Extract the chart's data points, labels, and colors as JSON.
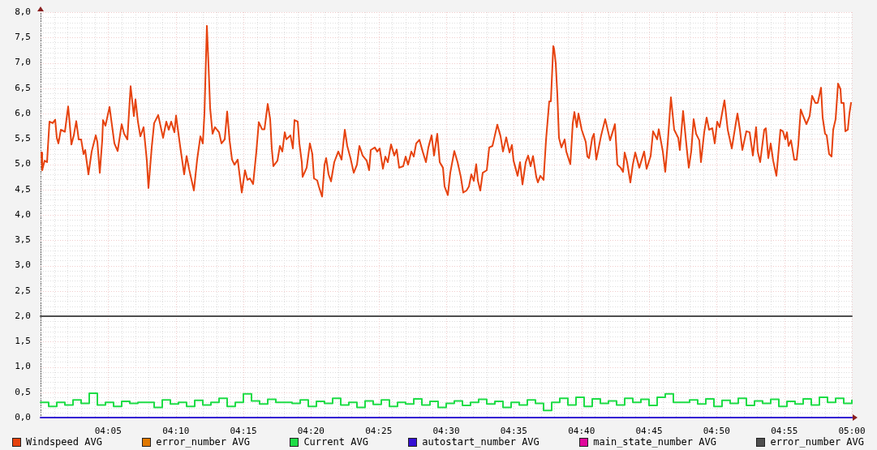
{
  "chart_data": {
    "type": "line",
    "legend": "bottom",
    "grid": true,
    "xlim": [
      4,
      5
    ],
    "ylim": [
      0,
      8
    ],
    "xticks": [
      {
        "value": 4,
        "label": null
      },
      {
        "value": 4.0167,
        "label": null
      },
      {
        "value": 4.0333,
        "label": null
      },
      {
        "value": 4.05,
        "label": null
      },
      {
        "value": 4.0667,
        "label": null
      },
      {
        "value": 4.0833,
        "label": "04:05"
      },
      {
        "value": 4.1,
        "label": null
      },
      {
        "value": 4.1167,
        "label": null
      },
      {
        "value": 4.1333,
        "label": null
      },
      {
        "value": 4.15,
        "label": null
      },
      {
        "value": 4.1667,
        "label": "04:10"
      },
      {
        "value": 4.1833,
        "label": null
      },
      {
        "value": 4.2,
        "label": null
      },
      {
        "value": 4.2167,
        "label": null
      },
      {
        "value": 4.2333,
        "label": null
      },
      {
        "value": 4.25,
        "label": "04:15"
      },
      {
        "value": 4.2667,
        "label": null
      },
      {
        "value": 4.2833,
        "label": null
      },
      {
        "value": 4.3,
        "label": null
      },
      {
        "value": 4.3167,
        "label": null
      },
      {
        "value": 4.3333,
        "label": "04:20"
      },
      {
        "value": 4.35,
        "label": null
      },
      {
        "value": 4.3667,
        "label": null
      },
      {
        "value": 4.3833,
        "label": null
      },
      {
        "value": 4.4,
        "label": null
      },
      {
        "value": 4.4167,
        "label": "04:25"
      },
      {
        "value": 4.4333,
        "label": null
      },
      {
        "value": 4.45,
        "label": null
      },
      {
        "value": 4.4667,
        "label": null
      },
      {
        "value": 4.4833,
        "label": null
      },
      {
        "value": 4.5,
        "label": "04:30"
      },
      {
        "value": 4.5167,
        "label": null
      },
      {
        "value": 4.5333,
        "label": null
      },
      {
        "value": 4.55,
        "label": null
      },
      {
        "value": 4.5667,
        "label": null
      },
      {
        "value": 4.5833,
        "label": "04:35"
      },
      {
        "value": 4.6,
        "label": null
      },
      {
        "value": 4.6167,
        "label": null
      },
      {
        "value": 4.6333,
        "label": null
      },
      {
        "value": 4.65,
        "label": null
      },
      {
        "value": 4.6667,
        "label": "04:40"
      },
      {
        "value": 4.6833,
        "label": null
      },
      {
        "value": 4.7,
        "label": null
      },
      {
        "value": 4.7167,
        "label": null
      },
      {
        "value": 4.7333,
        "label": null
      },
      {
        "value": 4.75,
        "label": "04:45"
      },
      {
        "value": 4.7667,
        "label": null
      },
      {
        "value": 4.7833,
        "label": null
      },
      {
        "value": 4.8,
        "label": null
      },
      {
        "value": 4.8167,
        "label": null
      },
      {
        "value": 4.8333,
        "label": "04:50"
      },
      {
        "value": 4.85,
        "label": null
      },
      {
        "value": 4.8667,
        "label": null
      },
      {
        "value": 4.8833,
        "label": null
      },
      {
        "value": 4.9,
        "label": null
      },
      {
        "value": 4.9167,
        "label": "04:55"
      },
      {
        "value": 4.9333,
        "label": null
      },
      {
        "value": 4.95,
        "label": null
      },
      {
        "value": 4.9667,
        "label": null
      },
      {
        "value": 4.9833,
        "label": null
      },
      {
        "value": 5,
        "label": "05:00"
      }
    ],
    "yticks": [
      {
        "value": 0,
        "label": "0,0"
      },
      {
        "value": 0.1,
        "label": null
      },
      {
        "value": 0.2,
        "label": null
      },
      {
        "value": 0.3,
        "label": null
      },
      {
        "value": 0.4,
        "label": null
      },
      {
        "value": 0.5,
        "label": "0,5"
      },
      {
        "value": 0.6,
        "label": null
      },
      {
        "value": 0.7,
        "label": null
      },
      {
        "value": 0.8,
        "label": null
      },
      {
        "value": 0.9,
        "label": null
      },
      {
        "value": 1,
        "label": "1,0"
      },
      {
        "value": 1.1,
        "label": null
      },
      {
        "value": 1.2,
        "label": null
      },
      {
        "value": 1.3,
        "label": null
      },
      {
        "value": 1.4,
        "label": null
      },
      {
        "value": 1.5,
        "label": "1,5"
      },
      {
        "value": 1.6,
        "label": null
      },
      {
        "value": 1.7,
        "label": null
      },
      {
        "value": 1.8,
        "label": null
      },
      {
        "value": 1.9,
        "label": null
      },
      {
        "value": 2,
        "label": "2,0"
      },
      {
        "value": 2.1,
        "label": null
      },
      {
        "value": 2.2,
        "label": null
      },
      {
        "value": 2.3,
        "label": null
      },
      {
        "value": 2.4,
        "label": null
      },
      {
        "value": 2.5,
        "label": "2,5"
      },
      {
        "value": 2.6,
        "label": null
      },
      {
        "value": 2.7,
        "label": null
      },
      {
        "value": 2.8,
        "label": null
      },
      {
        "value": 2.9,
        "label": null
      },
      {
        "value": 3,
        "label": "3,0"
      },
      {
        "value": 3.1,
        "label": null
      },
      {
        "value": 3.2,
        "label": null
      },
      {
        "value": 3.3,
        "label": null
      },
      {
        "value": 3.4,
        "label": null
      },
      {
        "value": 3.5,
        "label": "3,5"
      },
      {
        "value": 3.6,
        "label": null
      },
      {
        "value": 3.7,
        "label": null
      },
      {
        "value": 3.8,
        "label": null
      },
      {
        "value": 3.9,
        "label": null
      },
      {
        "value": 4,
        "label": "4,0"
      },
      {
        "value": 4.1,
        "label": null
      },
      {
        "value": 4.2,
        "label": null
      },
      {
        "value": 4.3,
        "label": null
      },
      {
        "value": 4.4,
        "label": null
      },
      {
        "value": 4.5,
        "label": "4,5"
      },
      {
        "value": 4.6,
        "label": null
      },
      {
        "value": 4.7,
        "label": null
      },
      {
        "value": 4.8,
        "label": null
      },
      {
        "value": 4.9,
        "label": null
      },
      {
        "value": 5,
        "label": "5,0"
      },
      {
        "value": 5.1,
        "label": null
      },
      {
        "value": 5.2,
        "label": null
      },
      {
        "value": 5.3,
        "label": null
      },
      {
        "value": 5.4,
        "label": null
      },
      {
        "value": 5.5,
        "label": "5,5"
      },
      {
        "value": 5.6,
        "label": null
      },
      {
        "value": 5.7,
        "label": null
      },
      {
        "value": 5.8,
        "label": null
      },
      {
        "value": 5.9,
        "label": null
      },
      {
        "value": 6,
        "label": "6,0"
      },
      {
        "value": 6.1,
        "label": null
      },
      {
        "value": 6.2,
        "label": null
      },
      {
        "value": 6.3,
        "label": null
      },
      {
        "value": 6.4,
        "label": null
      },
      {
        "value": 6.5,
        "label": "6,5"
      },
      {
        "value": 6.6,
        "label": null
      },
      {
        "value": 6.7,
        "label": null
      },
      {
        "value": 6.8,
        "label": null
      },
      {
        "value": 6.9,
        "label": null
      },
      {
        "value": 7,
        "label": "7,0"
      },
      {
        "value": 7.1,
        "label": null
      },
      {
        "value": 7.2,
        "label": null
      },
      {
        "value": 7.3,
        "label": null
      },
      {
        "value": 7.4,
        "label": null
      },
      {
        "value": 7.5,
        "label": "7,5"
      },
      {
        "value": 7.6,
        "label": null
      },
      {
        "value": 7.7,
        "label": null
      },
      {
        "value": 7.8,
        "label": null
      },
      {
        "value": 7.9,
        "label": null
      },
      {
        "value": 8,
        "label": "8,0"
      }
    ],
    "series": [
      {
        "name": "Windspeed AVG",
        "color": "#e6420e",
        "x": [
          4.001,
          4.002,
          4.005,
          4.008,
          4.009,
          4.011,
          4.015,
          4.018,
          4.02,
          4.022,
          4.025,
          4.03,
          4.034,
          4.036,
          4.038,
          4.041,
          4.044,
          4.047,
          4.05,
          4.053,
          4.055,
          4.059,
          4.063,
          4.068,
          4.07,
          4.073,
          4.076,
          4.077,
          4.08,
          4.085,
          4.087,
          4.091,
          4.095,
          4.1,
          4.103,
          4.107,
          4.111,
          4.115,
          4.117,
          4.12,
          4.123,
          4.127,
          4.131,
          4.133,
          4.137,
          4.14,
          4.145,
          4.151,
          4.155,
          4.158,
          4.161,
          4.165,
          4.167,
          4.172,
          4.177,
          4.18,
          4.183,
          4.189,
          4.193,
          4.197,
          4.2,
          4.202,
          4.205,
          4.207,
          4.209,
          4.212,
          4.215,
          4.22,
          4.223,
          4.227,
          4.23,
          4.233,
          4.236,
          4.239,
          4.243,
          4.248,
          4.252,
          4.255,
          4.258,
          4.262,
          4.266,
          4.269,
          4.273,
          4.276,
          4.28,
          4.283,
          4.285,
          4.287,
          4.292,
          4.295,
          4.298,
          4.301,
          4.303,
          4.308,
          4.311,
          4.313,
          4.317,
          4.319,
          4.322,
          4.323,
          4.328,
          4.332,
          4.335,
          4.337,
          4.341,
          4.343,
          4.347,
          4.35,
          4.352,
          4.355,
          4.358,
          4.362,
          4.367,
          4.371,
          4.375,
          4.378,
          4.382,
          4.386,
          4.39,
          4.393,
          4.397,
          4.402,
          4.405,
          4.407,
          4.412,
          4.415,
          4.418,
          4.422,
          4.425,
          4.428,
          4.432,
          4.436,
          4.439,
          4.442,
          4.447,
          4.45,
          4.453,
          4.457,
          4.46,
          4.463,
          4.467,
          4.471,
          4.475,
          4.478,
          4.482,
          4.485,
          4.489,
          4.492,
          4.496,
          4.498,
          4.502,
          4.505,
          4.51,
          4.514,
          4.518,
          4.521,
          4.525,
          4.528,
          4.531,
          4.534,
          4.537,
          4.539,
          4.542,
          4.545,
          4.55,
          4.553,
          4.557,
          4.56,
          4.563,
          4.567,
          4.57,
          4.574,
          4.578,
          4.581,
          4.583,
          4.588,
          4.591,
          4.594,
          4.598,
          4.601,
          4.604,
          4.607,
          4.611,
          4.613,
          4.616,
          4.62,
          4.623,
          4.627,
          4.629,
          4.632,
          4.633,
          4.635,
          4.637,
          4.639,
          4.642,
          4.646,
          4.648,
          4.653,
          4.656,
          4.658,
          4.661,
          4.663,
          4.667,
          4.672,
          4.674,
          4.676,
          4.68,
          4.682,
          4.685,
          4.691,
          4.696,
          4.702,
          4.708,
          4.711,
          4.715,
          4.718,
          4.72,
          4.723,
          4.727,
          4.73,
          4.733,
          4.738,
          4.744,
          4.747,
          4.752,
          4.755,
          4.76,
          4.762,
          4.767,
          4.77,
          4.773,
          4.777,
          4.781,
          4.786,
          4.788,
          4.792,
          4.796,
          4.799,
          4.802,
          4.805,
          4.808,
          4.812,
          4.814,
          4.818,
          4.821,
          4.824,
          4.828,
          4.831,
          4.834,
          4.837,
          4.84,
          4.843,
          4.847,
          4.852,
          4.857,
          4.859,
          4.862,
          4.865,
          4.87,
          4.874,
          4.878,
          4.882,
          4.884,
          4.887,
          4.892,
          4.894,
          4.897,
          4.9,
          4.903,
          4.907,
          4.912,
          4.915,
          4.918,
          4.92,
          4.922,
          4.925,
          4.929,
          4.932,
          4.934,
          4.937,
          4.94,
          4.944,
          4.948,
          4.951,
          4.955,
          4.958,
          4.962,
          4.964,
          4.967,
          4.969,
          4.972,
          4.975,
          4.977,
          4.98,
          4.983,
          4.986,
          4.987,
          4.99,
          4.992,
          4.995,
          4.997,
          4.999
        ],
        "values": [
          5.23,
          4.88,
          5.07,
          5.04,
          5.32,
          5.84,
          5.81,
          5.88,
          5.52,
          5.41,
          5.68,
          5.64,
          6.14,
          5.79,
          5.39,
          5.57,
          5.85,
          5.49,
          5.49,
          5.2,
          5.28,
          4.8,
          5.25,
          5.57,
          5.44,
          4.83,
          5.47,
          5.87,
          5.76,
          6.13,
          5.89,
          5.41,
          5.26,
          5.79,
          5.6,
          5.49,
          6.54,
          5.95,
          6.28,
          5.84,
          5.55,
          5.73,
          5.07,
          4.53,
          5.33,
          5.81,
          5.97,
          5.52,
          5.84,
          5.68,
          5.84,
          5.63,
          5.96,
          5.36,
          4.8,
          5.16,
          4.91,
          4.48,
          5.09,
          5.55,
          5.41,
          6.0,
          7.73,
          6.96,
          6.11,
          5.6,
          5.73,
          5.63,
          5.41,
          5.49,
          6.04,
          5.47,
          5.09,
          4.99,
          5.09,
          4.44,
          4.88,
          4.69,
          4.72,
          4.61,
          5.25,
          5.83,
          5.69,
          5.69,
          6.19,
          5.89,
          5.31,
          4.96,
          5.07,
          5.36,
          5.25,
          5.63,
          5.49,
          5.57,
          5.31,
          5.87,
          5.84,
          5.41,
          5.04,
          4.75,
          4.93,
          5.41,
          5.2,
          4.72,
          4.68,
          4.56,
          4.36,
          4.99,
          5.12,
          4.8,
          4.66,
          5.04,
          5.25,
          5.09,
          5.68,
          5.36,
          5.12,
          4.83,
          4.99,
          5.36,
          5.17,
          5.07,
          4.88,
          5.28,
          5.33,
          5.25,
          5.31,
          4.91,
          5.15,
          5.04,
          5.39,
          5.17,
          5.29,
          4.93,
          4.96,
          5.15,
          4.99,
          5.25,
          5.15,
          5.41,
          5.48,
          5.25,
          5.04,
          5.33,
          5.57,
          5.17,
          5.6,
          5.04,
          4.93,
          4.56,
          4.39,
          4.83,
          5.26,
          5.04,
          4.75,
          4.44,
          4.48,
          4.56,
          4.8,
          4.67,
          5.0,
          4.68,
          4.48,
          4.83,
          4.88,
          5.33,
          5.36,
          5.57,
          5.78,
          5.55,
          5.25,
          5.53,
          5.23,
          5.38,
          5.07,
          4.77,
          5.04,
          4.6,
          5.04,
          5.17,
          4.96,
          5.16,
          4.75,
          4.64,
          4.77,
          4.69,
          5.47,
          6.24,
          6.24,
          7.33,
          7.28,
          6.99,
          6.37,
          5.52,
          5.33,
          5.49,
          5.25,
          5.0,
          5.81,
          6.03,
          5.73,
          6.0,
          5.68,
          5.44,
          5.15,
          5.12,
          5.52,
          5.6,
          5.09,
          5.57,
          5.89,
          5.47,
          5.79,
          4.99,
          4.93,
          4.85,
          5.23,
          5.04,
          4.64,
          4.99,
          5.23,
          4.93,
          5.25,
          4.91,
          5.16,
          5.65,
          5.49,
          5.69,
          5.25,
          4.85,
          5.41,
          6.32,
          5.68,
          5.52,
          5.28,
          6.05,
          5.39,
          4.93,
          5.25,
          5.89,
          5.6,
          5.47,
          5.04,
          5.63,
          5.92,
          5.68,
          5.71,
          5.41,
          5.84,
          5.73,
          6.0,
          6.26,
          5.68,
          5.31,
          5.81,
          6.0,
          5.68,
          5.28,
          5.65,
          5.63,
          5.17,
          5.73,
          5.25,
          5.04,
          5.68,
          5.71,
          5.12,
          5.41,
          5.07,
          4.77,
          5.68,
          5.65,
          5.49,
          5.63,
          5.36,
          5.47,
          5.09,
          5.09,
          5.39,
          6.08,
          5.95,
          5.79,
          5.95,
          6.35,
          6.21,
          6.21,
          6.51,
          5.92,
          5.6,
          5.57,
          5.2,
          5.15,
          5.68,
          5.89,
          6.59,
          6.48,
          6.21,
          6.21,
          5.65,
          5.68,
          6.0,
          6.21
        ]
      },
      {
        "name": "error_number AVG",
        "color": "#e07800"
      },
      {
        "name": "Current AVG",
        "type": "step",
        "color": "#1edc46",
        "x": [
          4,
          4.01,
          4.02,
          4.03,
          4.04,
          4.05,
          4.06,
          4.07,
          4.08,
          4.09,
          4.1,
          4.11,
          4.12,
          4.13,
          4.14,
          4.15,
          4.16,
          4.17,
          4.18,
          4.19,
          4.2,
          4.21,
          4.22,
          4.23,
          4.24,
          4.25,
          4.26,
          4.27,
          4.28,
          4.29,
          4.3,
          4.31,
          4.32,
          4.33,
          4.34,
          4.35,
          4.36,
          4.37,
          4.38,
          4.39,
          4.4,
          4.41,
          4.42,
          4.43,
          4.44,
          4.45,
          4.46,
          4.47,
          4.48,
          4.49,
          4.5,
          4.51,
          4.52,
          4.53,
          4.54,
          4.55,
          4.56,
          4.57,
          4.58,
          4.59,
          4.6,
          4.61,
          4.62,
          4.63,
          4.64,
          4.65,
          4.66,
          4.67,
          4.68,
          4.69,
          4.7,
          4.71,
          4.72,
          4.73,
          4.74,
          4.75,
          4.76,
          4.77,
          4.78,
          4.79,
          4.8,
          4.81,
          4.82,
          4.83,
          4.84,
          4.85,
          4.86,
          4.87,
          4.88,
          4.89,
          4.9,
          4.91,
          4.92,
          4.93,
          4.94,
          4.95,
          4.96,
          4.97,
          4.98,
          4.99,
          5
        ],
        "values": [
          0.3,
          0.22,
          0.3,
          0.25,
          0.35,
          0.28,
          0.48,
          0.25,
          0.3,
          0.22,
          0.32,
          0.28,
          0.3,
          0.3,
          0.2,
          0.35,
          0.27,
          0.3,
          0.22,
          0.34,
          0.25,
          0.3,
          0.38,
          0.22,
          0.3,
          0.47,
          0.33,
          0.27,
          0.36,
          0.3,
          0.3,
          0.28,
          0.35,
          0.22,
          0.32,
          0.28,
          0.38,
          0.25,
          0.3,
          0.2,
          0.33,
          0.26,
          0.35,
          0.22,
          0.3,
          0.27,
          0.37,
          0.25,
          0.32,
          0.2,
          0.28,
          0.33,
          0.24,
          0.3,
          0.36,
          0.27,
          0.32,
          0.2,
          0.3,
          0.25,
          0.35,
          0.28,
          0.14,
          0.3,
          0.38,
          0.25,
          0.4,
          0.22,
          0.37,
          0.28,
          0.33,
          0.25,
          0.38,
          0.3,
          0.36,
          0.24,
          0.4,
          0.47,
          0.3,
          0.3,
          0.35,
          0.27,
          0.37,
          0.22,
          0.34,
          0.28,
          0.38,
          0.24,
          0.33,
          0.28,
          0.36,
          0.22,
          0.32,
          0.27,
          0.37,
          0.25,
          0.4,
          0.3,
          0.38,
          0.28,
          0.34
        ]
      },
      {
        "name": "autostart_number AVG",
        "color": "#3410d4",
        "x": [
          4,
          5
        ],
        "values": [
          0,
          0
        ]
      },
      {
        "name": "main_state_number AVG",
        "color": "#e0089c"
      },
      {
        "name": "error_number AVG",
        "color": "#4e4e4e",
        "x": [
          4,
          5
        ],
        "values": [
          2,
          2
        ]
      }
    ]
  }
}
